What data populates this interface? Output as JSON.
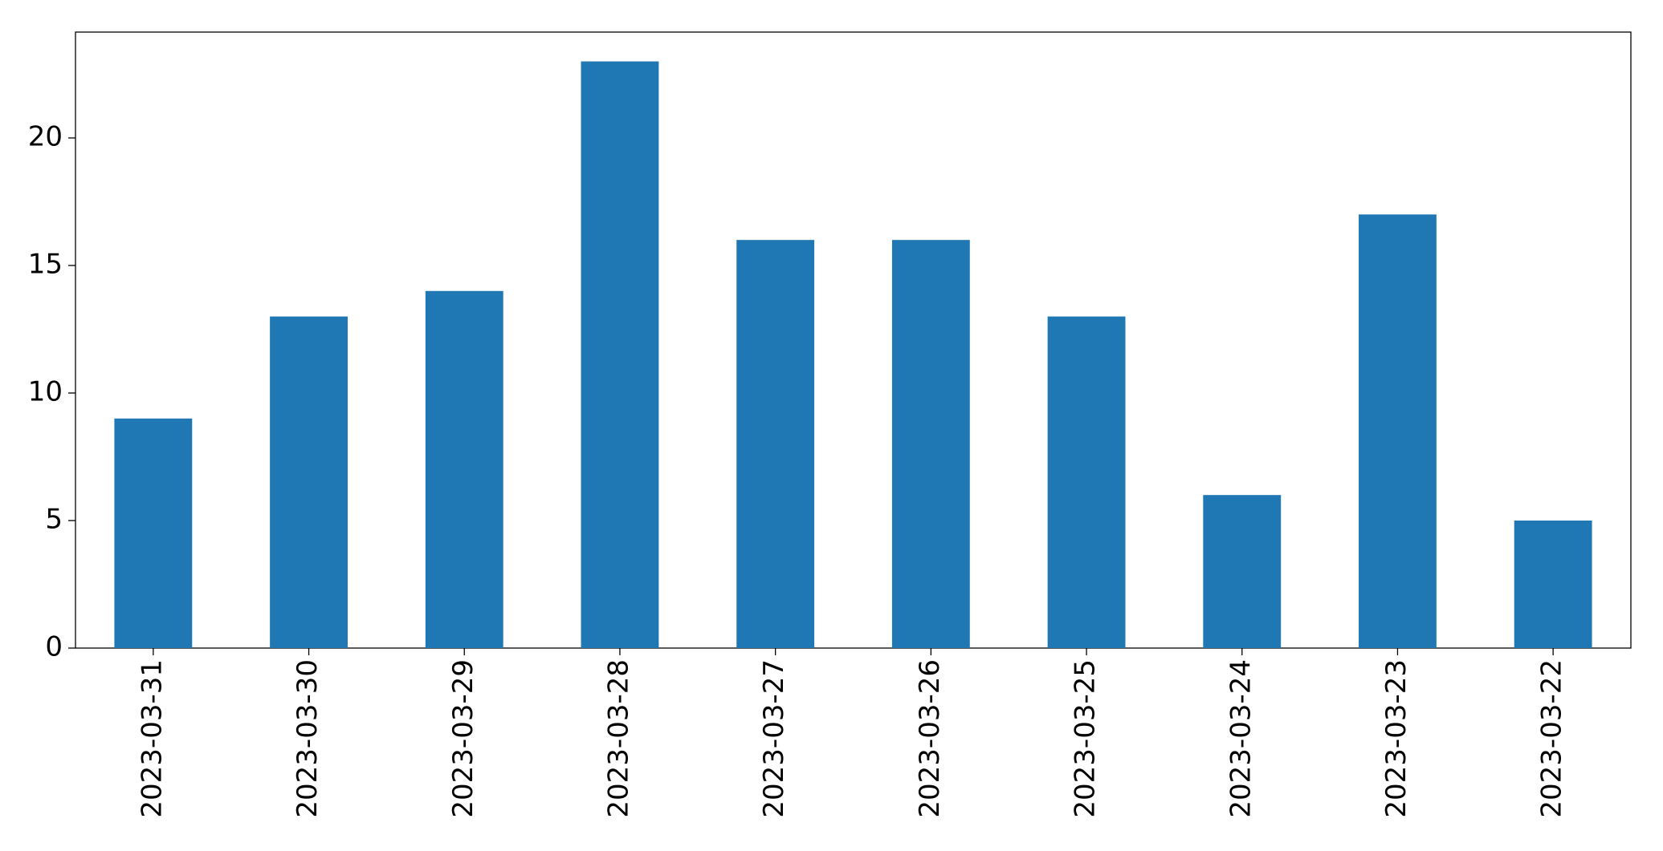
{
  "chart_data": {
    "type": "bar",
    "categories": [
      "2023-03-31",
      "2023-03-30",
      "2023-03-29",
      "2023-03-28",
      "2023-03-27",
      "2023-03-26",
      "2023-03-25",
      "2023-03-24",
      "2023-03-23",
      "2023-03-22"
    ],
    "values": [
      9,
      13,
      14,
      23,
      16,
      16,
      13,
      6,
      17,
      5
    ],
    "color": "#1f77b4",
    "ylim": [
      0,
      24.15
    ],
    "yticks": [
      0,
      5,
      10,
      15,
      20
    ],
    "grid": false
  }
}
